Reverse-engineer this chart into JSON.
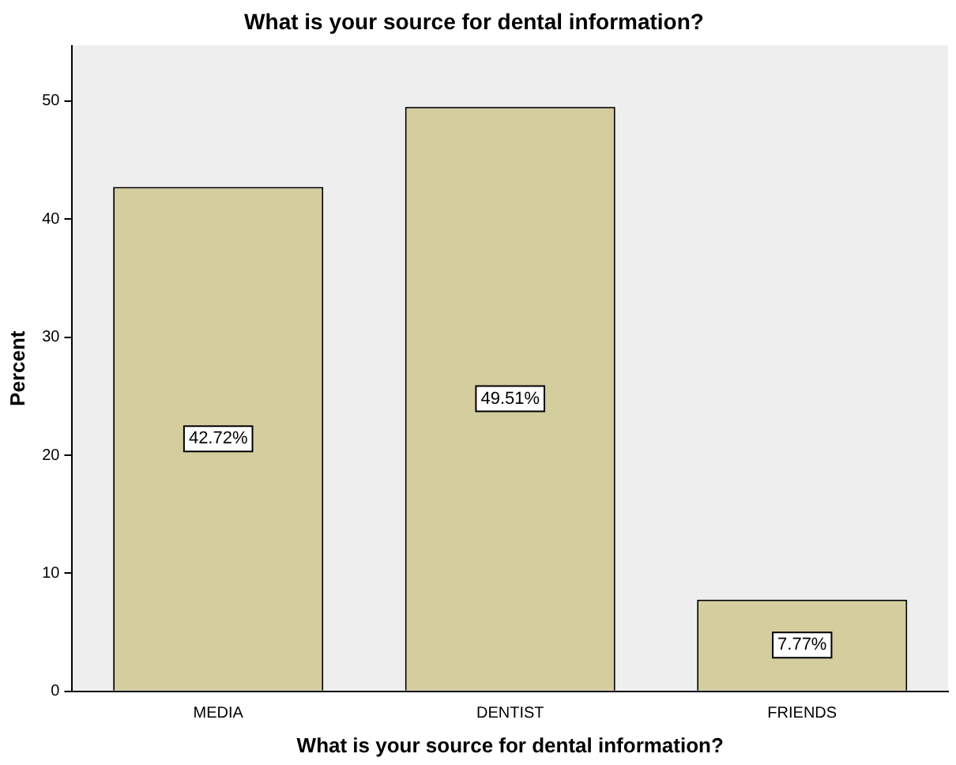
{
  "chart_data": {
    "type": "bar",
    "title": "What is your source for dental information?",
    "xlabel": "What is your source for dental information?",
    "ylabel": "Percent",
    "categories": [
      "MEDIA",
      "DENTIST",
      "FRIENDS"
    ],
    "values": [
      42.72,
      49.51,
      7.77
    ],
    "value_labels": [
      "42.72%",
      "49.51%",
      "7.77%"
    ],
    "color": "#d4cd9e",
    "ylim": [
      0,
      54.7
    ],
    "yticks": [
      0,
      10,
      20,
      30,
      40,
      50
    ],
    "grid": false,
    "legend": false
  }
}
